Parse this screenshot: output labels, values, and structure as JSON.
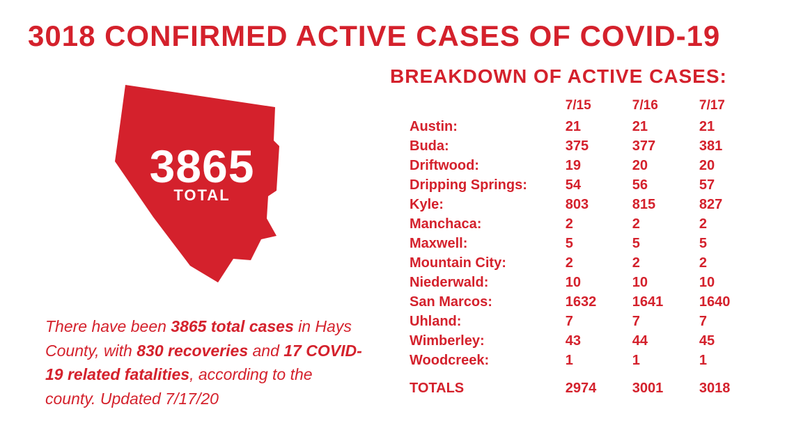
{
  "colors": {
    "brand": "#d4212c",
    "bg": "#ffffff",
    "map_text": "#ffffff"
  },
  "headline": "3018 CONFIRMED ACTIVE CASES OF COVID-19",
  "map": {
    "total_number": "3865",
    "total_label": "TOTAL"
  },
  "blurb": {
    "pre": "There have been ",
    "bold1": "3865 total cases",
    "mid1": " in Hays County, with ",
    "bold2": "830 recoveries",
    "mid2": " and ",
    "bold3": "17 COVID-19 related fatalities",
    "post": ", according to the county. Updated 7/17/20"
  },
  "breakdown": {
    "title": "BREAKDOWN OF ACTIVE CASES:",
    "dates": [
      "7/15",
      "7/16",
      "7/17"
    ],
    "rows": [
      {
        "city": "Austin:",
        "v": [
          "21",
          "21",
          "21"
        ]
      },
      {
        "city": "Buda:",
        "v": [
          "375",
          "377",
          "381"
        ]
      },
      {
        "city": "Driftwood:",
        "v": [
          "19",
          "20",
          "20"
        ]
      },
      {
        "city": "Dripping Springs:",
        "v": [
          "54",
          "56",
          "57"
        ]
      },
      {
        "city": "Kyle:",
        "v": [
          "803",
          "815",
          "827"
        ]
      },
      {
        "city": "Manchaca:",
        "v": [
          "2",
          "2",
          "2"
        ]
      },
      {
        "city": "Maxwell:",
        "v": [
          "5",
          "5",
          "5"
        ]
      },
      {
        "city": "Mountain City:",
        "v": [
          "2",
          "2",
          "2"
        ]
      },
      {
        "city": "Niederwald:",
        "v": [
          "10",
          "10",
          "10"
        ]
      },
      {
        "city": "San Marcos:",
        "v": [
          "1632",
          "1641",
          "1640"
        ]
      },
      {
        "city": "Uhland:",
        "v": [
          "7",
          "7",
          "7"
        ]
      },
      {
        "city": "Wimberley:",
        "v": [
          "43",
          "44",
          "45"
        ]
      },
      {
        "city": "Woodcreek:",
        "v": [
          "1",
          "1",
          "1"
        ]
      }
    ],
    "totals_label": "TOTALS",
    "totals": [
      "2974",
      "3001",
      "3018"
    ]
  },
  "fonts": {
    "headline_size_pt": 42,
    "body_size_pt": 20,
    "blurb_size_pt": 23,
    "breakdown_title_pt": 28,
    "map_number_pt": 66
  }
}
